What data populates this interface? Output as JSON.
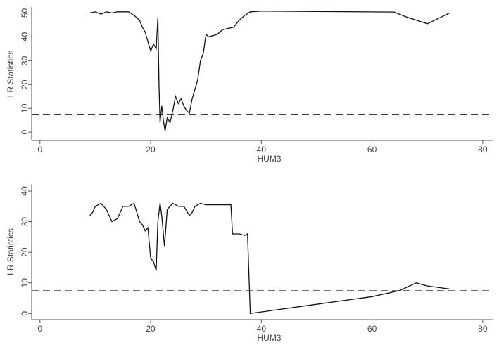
{
  "chart_data": [
    {
      "type": "line",
      "ylabel": "LR Statistics",
      "xlabel": "HUM3",
      "xlim": [
        -1.5,
        81.8
      ],
      "ylim": [
        -3.5,
        52.5
      ],
      "xticks": [
        0,
        20,
        40,
        60,
        80
      ],
      "yticks": [
        0,
        10,
        20,
        30,
        40,
        50
      ],
      "hline": 7.38,
      "color": "#111111",
      "x": [
        9,
        10,
        11,
        12,
        13,
        14,
        15,
        16,
        17,
        18,
        18.5,
        19,
        19.5,
        20,
        20.5,
        21,
        21.3,
        21.5,
        21.7,
        22,
        22.3,
        22.6,
        23,
        23.5,
        24,
        24.5,
        25,
        25.5,
        26,
        26.5,
        27,
        27.5,
        28,
        28.5,
        29,
        29.5,
        30,
        30.5,
        32,
        33,
        35,
        36,
        37,
        38,
        40,
        50,
        64,
        66,
        70,
        74
      ],
      "values": [
        50,
        50.5,
        49.5,
        50.5,
        50,
        50.5,
        50.5,
        50.5,
        49,
        47,
        44,
        42,
        38,
        34,
        37,
        35,
        48,
        20,
        4,
        11,
        5,
        0.5,
        6,
        4,
        9,
        15,
        12,
        14,
        11,
        9,
        8,
        14,
        18,
        22,
        30,
        33,
        41,
        40,
        41,
        43,
        44,
        47,
        49,
        50.5,
        50.8,
        50.6,
        50.4,
        48.5,
        45.5,
        50
      ]
    },
    {
      "type": "line",
      "ylabel": "LR Statistics",
      "xlabel": "HUM3",
      "xlim": [
        -1.5,
        81.8
      ],
      "ylim": [
        -2,
        42.3
      ],
      "xticks": [
        0,
        20,
        40,
        60,
        80
      ],
      "yticks": [
        0,
        10,
        20,
        30,
        40
      ],
      "hline": 7.38,
      "color": "#111111",
      "x": [
        9,
        9.5,
        10,
        11,
        12,
        13,
        14,
        15,
        16,
        17,
        18,
        18.5,
        19,
        19.5,
        20,
        20.5,
        21,
        21.3,
        21.7,
        22,
        22.5,
        23,
        24,
        25,
        26,
        27,
        27.5,
        28,
        29,
        30,
        34.5,
        34.8,
        36,
        37,
        37.5,
        38,
        40,
        50,
        60,
        65,
        68,
        70,
        74
      ],
      "values": [
        32,
        33,
        35,
        36,
        34,
        30,
        31,
        35,
        35,
        36,
        30,
        29,
        27,
        28,
        18,
        17,
        14,
        30,
        36,
        32,
        22,
        34,
        36,
        35,
        35,
        32,
        33,
        35,
        36,
        35.5,
        35.5,
        26,
        26,
        25.5,
        26,
        0,
        0.5,
        3,
        5.5,
        7.5,
        10,
        9,
        8
      ]
    }
  ]
}
